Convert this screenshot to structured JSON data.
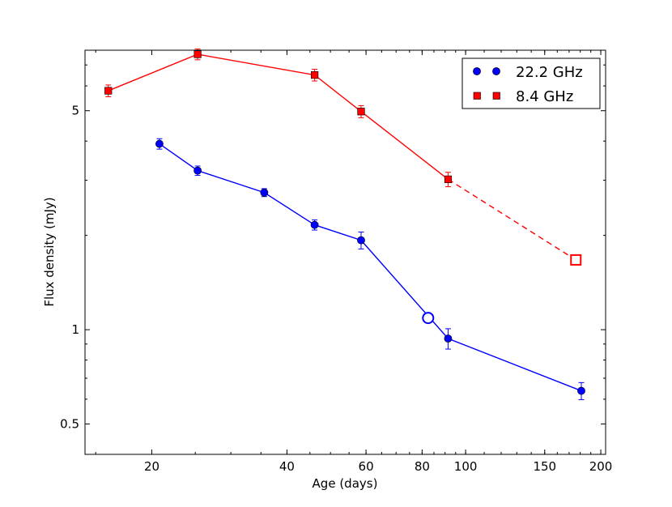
{
  "chart_data": {
    "type": "line",
    "title": "",
    "xlabel": "Age (days)",
    "ylabel": "Flux density (mJy)",
    "xscale": "log",
    "yscale": "log",
    "xlim": [
      14.2,
      205
    ],
    "ylim": [
      0.4,
      7.8
    ],
    "xticks": [
      {
        "value": 20,
        "label": "20"
      },
      {
        "value": 40,
        "label": "40"
      },
      {
        "value": 60,
        "label": "60"
      },
      {
        "value": 80,
        "label": "80"
      },
      {
        "value": 100,
        "label": "100"
      },
      {
        "value": 150,
        "label": "150"
      },
      {
        "value": 200,
        "label": "200"
      }
    ],
    "yticks": [
      {
        "value": 0.5,
        "label": "0.5"
      },
      {
        "value": 1,
        "label": "1"
      },
      {
        "value": 5,
        "label": "5"
      }
    ],
    "legend_position": "top-right",
    "series": [
      {
        "name": "22.2 GHz",
        "color": "#0000ff",
        "marker": "circle",
        "points": [
          {
            "x": 20.8,
            "y": 3.92,
            "err": 0.15
          },
          {
            "x": 25.3,
            "y": 3.22,
            "err": 0.11
          },
          {
            "x": 35.6,
            "y": 2.74,
            "err": 0.08
          },
          {
            "x": 46.1,
            "y": 2.16,
            "err": 0.08
          },
          {
            "x": 58.5,
            "y": 1.93,
            "err": 0.12
          },
          {
            "x": 91.4,
            "y": 0.937,
            "err": 0.07
          },
          {
            "x": 181.0,
            "y": 0.638,
            "err": 0.04
          }
        ],
        "extra_points": [
          {
            "x": 82.5,
            "y": 1.09,
            "note": "open marker"
          }
        ]
      },
      {
        "name": "8.4 GHz",
        "color": "#ff0000",
        "marker": "square",
        "points": [
          {
            "x": 16.0,
            "y": 5.79,
            "err": 0.25
          },
          {
            "x": 25.3,
            "y": 7.57,
            "err": 0.3
          },
          {
            "x": 46.1,
            "y": 6.5,
            "err": 0.28
          },
          {
            "x": 58.5,
            "y": 4.97,
            "err": 0.22
          },
          {
            "x": 91.4,
            "y": 3.02,
            "err": 0.16
          }
        ],
        "extra_points": [
          {
            "x": 176.0,
            "y": 1.67,
            "note": "open marker, dashed connector"
          }
        ]
      }
    ]
  }
}
